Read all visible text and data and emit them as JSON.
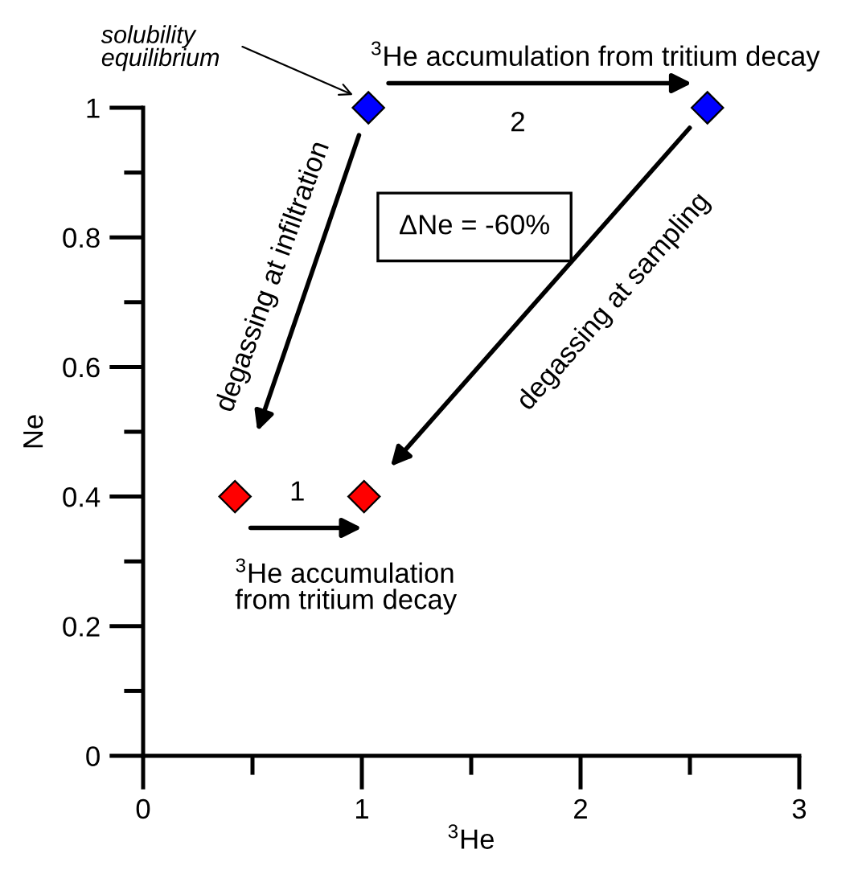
{
  "chart_data": {
    "type": "scatter",
    "xlabel": "$^{3}$He",
    "ylabel": "Ne",
    "xlim": [
      0,
      3
    ],
    "ylim": [
      0,
      1
    ],
    "xticks": [
      0,
      {
        "value": 0.5,
        "label": null
      },
      1,
      {
        "value": 1.5,
        "label": null
      },
      2,
      {
        "value": 2.5,
        "label": null
      },
      3
    ],
    "yticks": [
      0,
      {
        "value": 0.1,
        "label": null
      },
      0.2,
      {
        "value": 0.3,
        "label": null
      },
      0.4,
      {
        "value": 0.5,
        "label": null
      },
      0.6,
      {
        "value": 0.7,
        "label": null
      },
      0.8,
      {
        "value": 0.9,
        "label": null
      },
      1
    ],
    "marker": "diamond",
    "grid": false,
    "legend": false,
    "series": [
      {
        "color": "#ff0000",
        "x": [
          0.42,
          1.01
        ],
        "values": [
          0.4,
          0.4
        ]
      },
      {
        "color": "#0000ff",
        "x": [
          1.03,
          2.58
        ],
        "values": [
          1.0,
          1.0
        ]
      }
    ],
    "annotations": [
      "solubility\nequilibrium",
      "$^{3}$He accumulation from tritium decay",
      "2",
      "ΔNe = -60%",
      "degassing at infiltration",
      "degassing at sampling",
      "1",
      "$^{3}$He accumulation\nfrom tritium decay"
    ]
  }
}
